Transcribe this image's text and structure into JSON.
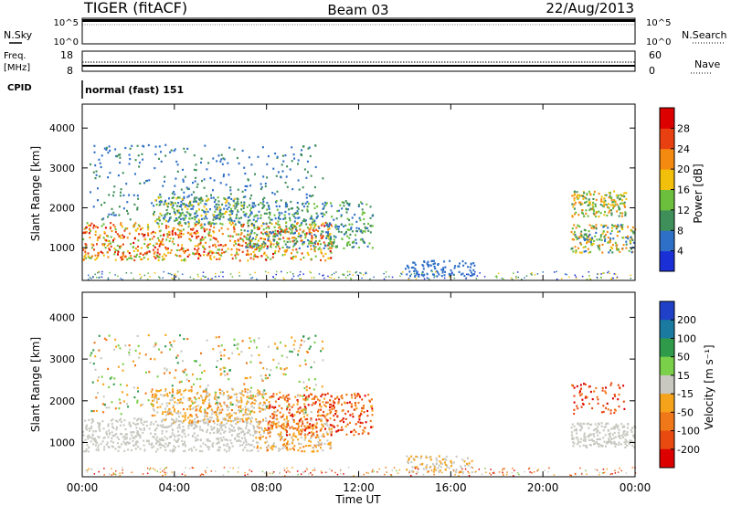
{
  "header": {
    "title": "TIGER (fitACF)",
    "beam": "Beam 03",
    "date": "22/Aug/2013"
  },
  "cpid_text": "normal (fast) 151",
  "chart_data": [
    {
      "type": "line",
      "panel": "noise",
      "left_label": "N.Sky",
      "right_label": "N.Search",
      "left_ticks": [
        "10^5",
        "10^0"
      ],
      "right_ticks": [
        "10^5",
        "10^0"
      ],
      "note": "noise levels near top of scale throughout day"
    },
    {
      "type": "line",
      "panel": "freq-nave",
      "left_label_line1": "Freq.",
      "left_label_line2": "[MHz]",
      "left_label3": "CPID",
      "right_label": "Nave",
      "left_ticks": [
        "18",
        "8"
      ],
      "right_ticks": [
        "60",
        "0"
      ],
      "freq_mhz": 9.5,
      "nave": 20
    },
    {
      "type": "heatmap",
      "panel": "power",
      "ylabel": "Slant Range [km]",
      "xlabel": "",
      "x_ticks": [
        "00:00",
        "04:00",
        "08:00",
        "12:00",
        "16:00",
        "20:00",
        "00:00"
      ],
      "y_ticks": [
        "1000",
        "2000",
        "3000",
        "4000"
      ],
      "ylim": [
        180,
        4600
      ],
      "xlim_hours": [
        0,
        24
      ],
      "colorbar_label": "Power [dB]",
      "colorbar_ticks": [
        "4",
        "8",
        "12",
        "16",
        "20",
        "24",
        "28"
      ],
      "colorbar_range": [
        0,
        32
      ],
      "colors": [
        "#1a2fd6",
        "#2e6fc8",
        "#3f8f5a",
        "#6cbf3c",
        "#f2c00a",
        "#f58a10",
        "#e84010",
        "#dd0000"
      ],
      "regions": [
        {
          "h0": 0.0,
          "h1": 10.8,
          "r0": 700,
          "r1": 1650,
          "vmin": 12,
          "vmax": 30
        },
        {
          "h0": 3.0,
          "h1": 7.0,
          "r0": 1600,
          "r1": 2300,
          "vmin": 4,
          "vmax": 20
        },
        {
          "h0": 7.0,
          "h1": 12.6,
          "r0": 1000,
          "r1": 2200,
          "vmin": 4,
          "vmax": 16
        },
        {
          "h0": 21.2,
          "h1": 24.0,
          "r0": 900,
          "r1": 1600,
          "vmin": 4,
          "vmax": 24
        },
        {
          "h0": 21.2,
          "h1": 23.6,
          "r0": 1800,
          "r1": 2450,
          "vmin": 8,
          "vmax": 24
        },
        {
          "h0": 0.3,
          "h1": 10.5,
          "r0": 1700,
          "r1": 3600,
          "vmin": 4,
          "vmax": 12
        },
        {
          "h0": 14.0,
          "h1": 17.0,
          "r0": 300,
          "r1": 700,
          "vmin": 4,
          "vmax": 8
        }
      ]
    },
    {
      "type": "heatmap",
      "panel": "velocity",
      "ylabel": "Slant Range [km]",
      "xlabel": "Time UT",
      "x_ticks": [
        "00:00",
        "04:00",
        "08:00",
        "12:00",
        "16:00",
        "20:00",
        "00:00"
      ],
      "y_ticks": [
        "1000",
        "2000",
        "3000",
        "4000"
      ],
      "ylim": [
        180,
        4600
      ],
      "xlim_hours": [
        0,
        24
      ],
      "colorbar_label": "Velocity [m s⁻¹]",
      "colorbar_ticks": [
        "200",
        "100",
        "50",
        "15",
        "-15",
        "-50",
        "-100",
        "-200"
      ],
      "colorbar_range": [
        -250,
        250
      ],
      "colors": [
        "#2040c8",
        "#1a7aa0",
        "#2f9a4a",
        "#7ad048",
        "#c8c8c0",
        "#f5a31a",
        "#f07818",
        "#e84a10",
        "#dd0000"
      ],
      "regions": [
        {
          "h0": 0.0,
          "h1": 7.5,
          "r0": 800,
          "r1": 1600,
          "vmin": -15,
          "vmax": 15
        },
        {
          "h0": 7.5,
          "h1": 10.8,
          "r0": 800,
          "r1": 1600,
          "vmin": -120,
          "vmax": 15
        },
        {
          "h0": 8.0,
          "h1": 12.6,
          "r0": 1200,
          "r1": 2200,
          "vmin": -220,
          "vmax": -50
        },
        {
          "h0": 3.0,
          "h1": 8.0,
          "r0": 1500,
          "r1": 2300,
          "vmin": -100,
          "vmax": 15
        },
        {
          "h0": 21.2,
          "h1": 24.0,
          "r0": 900,
          "r1": 1500,
          "vmin": -15,
          "vmax": 15
        },
        {
          "h0": 21.2,
          "h1": 23.6,
          "r0": 1700,
          "r1": 2450,
          "vmin": -220,
          "vmax": -100
        },
        {
          "h0": 0.3,
          "h1": 10.5,
          "r0": 1700,
          "r1": 3600,
          "vmin": -120,
          "vmax": 120
        },
        {
          "h0": 14.0,
          "h1": 17.0,
          "r0": 300,
          "r1": 700,
          "vmin": -50,
          "vmax": 15
        }
      ]
    }
  ]
}
